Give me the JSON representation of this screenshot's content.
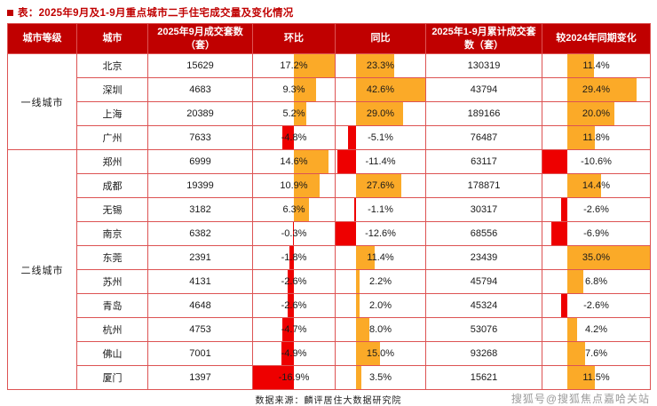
{
  "chart_data": {
    "type": "table",
    "title": "表：2025年9月及1-9月重点城市二手住宅成交量及变化情况",
    "columns": [
      {
        "key": "tier",
        "label": "城市等级"
      },
      {
        "key": "city",
        "label": "城市"
      },
      {
        "key": "sep_volume",
        "label": "2025年9月成交套数（套）"
      },
      {
        "key": "mom",
        "label": "环比"
      },
      {
        "key": "yoy",
        "label": "同比"
      },
      {
        "key": "cum_volume",
        "label": "2025年1-9月累计成交套数（套）"
      },
      {
        "key": "vs2024",
        "label": "较2024年同期变化"
      }
    ],
    "bar_columns": [
      "mom",
      "yoy",
      "vs2024"
    ],
    "value_suffix": "%",
    "groups": [
      {
        "tier": "一线城市",
        "rows": [
          {
            "city": "北京",
            "sep_volume": 15629,
            "mom": 17.2,
            "yoy": 23.3,
            "cum_volume": 130319,
            "vs2024": 11.4
          },
          {
            "city": "深圳",
            "sep_volume": 4683,
            "mom": 9.3,
            "yoy": 42.6,
            "cum_volume": 43794,
            "vs2024": 29.4
          },
          {
            "city": "上海",
            "sep_volume": 20389,
            "mom": 5.2,
            "yoy": 29.0,
            "cum_volume": 189166,
            "vs2024": 20.0
          },
          {
            "city": "广州",
            "sep_volume": 7633,
            "mom": -4.8,
            "yoy": -5.1,
            "cum_volume": 76487,
            "vs2024": 11.8
          }
        ]
      },
      {
        "tier": "二线城市",
        "rows": [
          {
            "city": "郑州",
            "sep_volume": 6999,
            "mom": 14.6,
            "yoy": -11.4,
            "cum_volume": 63117,
            "vs2024": -10.6
          },
          {
            "city": "成都",
            "sep_volume": 19399,
            "mom": 10.9,
            "yoy": 27.6,
            "cum_volume": 178871,
            "vs2024": 14.4
          },
          {
            "city": "无锡",
            "sep_volume": 3182,
            "mom": 6.3,
            "yoy": -1.1,
            "cum_volume": 30317,
            "vs2024": -2.6
          },
          {
            "city": "南京",
            "sep_volume": 6382,
            "mom": -0.3,
            "yoy": -12.6,
            "cum_volume": 68556,
            "vs2024": -6.9
          },
          {
            "city": "东莞",
            "sep_volume": 2391,
            "mom": -1.8,
            "yoy": 11.4,
            "cum_volume": 23439,
            "vs2024": 35.0
          },
          {
            "city": "苏州",
            "sep_volume": 4131,
            "mom": -2.6,
            "yoy": 2.2,
            "cum_volume": 45794,
            "vs2024": 6.8
          },
          {
            "city": "青岛",
            "sep_volume": 4648,
            "mom": -2.6,
            "yoy": 2.0,
            "cum_volume": 45324,
            "vs2024": -2.6
          },
          {
            "city": "杭州",
            "sep_volume": 4753,
            "mom": -4.7,
            "yoy": 8.0,
            "cum_volume": 53076,
            "vs2024": 4.2
          },
          {
            "city": "佛山",
            "sep_volume": 7001,
            "mom": -4.9,
            "yoy": 15.0,
            "cum_volume": 93268,
            "vs2024": 7.6
          },
          {
            "city": "厦门",
            "sep_volume": 1397,
            "mom": -16.9,
            "yoy": 3.5,
            "cum_volume": 15621,
            "vs2024": 11.5
          }
        ]
      }
    ]
  },
  "source_note": "数据来源：麟评居住大数据研究院",
  "watermark": "搜狐号@搜狐焦点嘉哈关站",
  "colors": {
    "header_bg": "#c00000",
    "header_text": "#ffffff",
    "border": "#dd5353",
    "title_text": "#c00000",
    "positive_bar": "#fbaa28",
    "negative_bar": "#ee0000",
    "watermark_text": "#9b9b9b",
    "body_text": "#1a1a1a"
  }
}
